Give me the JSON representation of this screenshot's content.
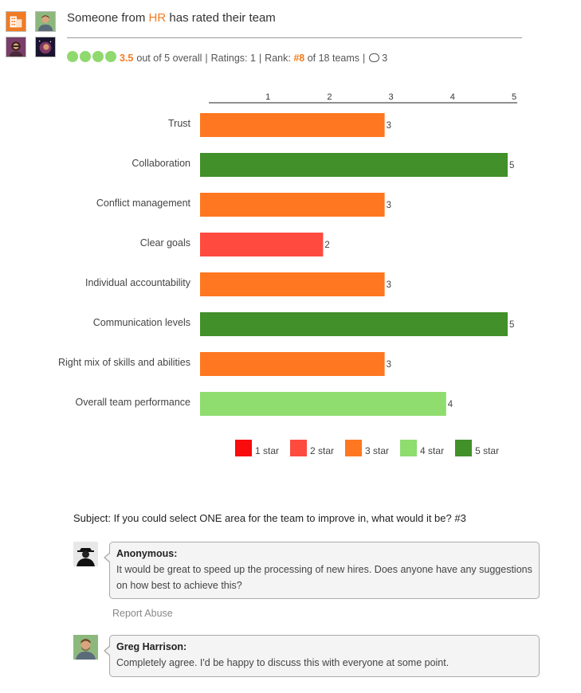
{
  "header": {
    "prefix": "Someone from ",
    "department": "HR",
    "suffix": " has rated their team"
  },
  "summary": {
    "score": "3.5",
    "overall_text": "out of 5 overall",
    "ratings_text": "Ratings: 1",
    "rank_label": "Rank:",
    "rank_value": "#8",
    "rank_suffix": "of 18 teams",
    "comment_count": "3",
    "filled_dots": 4
  },
  "colors": {
    "accent": "#f57c1f",
    "star1": "#f80c0c",
    "star2": "#fe4a3f",
    "star3": "#ff7720",
    "star4": "#8fdc6f",
    "star5": "#42902a"
  },
  "chart_data": {
    "type": "bar",
    "orientation": "horizontal",
    "categories": [
      "Trust",
      "Collaboration",
      "Conflict management",
      "Clear goals",
      "Individual accountability",
      "Communication levels",
      "Right mix of skills and abilities",
      "Overall team performance"
    ],
    "values": [
      3,
      5,
      3,
      2,
      3,
      5,
      3,
      4
    ],
    "xlim": [
      0,
      5
    ],
    "ticks": [
      1,
      2,
      3,
      4,
      5
    ],
    "tick_labels": [
      "1",
      "2",
      "3",
      "4",
      "5"
    ],
    "axis_position": "top",
    "legend": [
      "1 star",
      "2 star",
      "3 star",
      "4 star",
      "5 star"
    ],
    "legend_position": "bottom"
  },
  "discussion": {
    "subject": "Subject: If you could select ONE area for the team to improve in, what would it be? #3",
    "comments": [
      {
        "author": "Anonymous:",
        "text": "It would be great to speed up the processing of new hires. Does anyone have any suggestions on how best to achieve this?",
        "avatar": "anonymous-avatar"
      },
      {
        "author": "Greg Harrison:",
        "text": "Completely agree. I'd be happy to discuss this with everyone at some point.",
        "avatar": "user-avatar"
      }
    ],
    "report_label": "Report Abuse"
  }
}
